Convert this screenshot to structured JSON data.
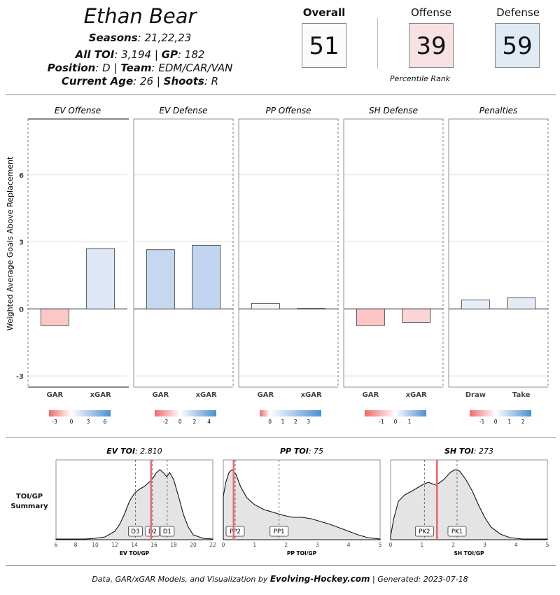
{
  "header": {
    "name": "Ethan Bear",
    "seasons_label": "Seasons",
    "seasons_value": ": 21,22,23",
    "toi_label": "All TOI",
    "toi_value": ": 3,194 | ",
    "gp_label": "GP",
    "gp_value": ": 182",
    "position_label": "Position",
    "position_value": ": D | ",
    "team_label": "Team",
    "team_value": ": EDM/CAR/VAN",
    "age_label": "Current Age",
    "age_value": ": 26 | ",
    "shoots_label": "Shoots",
    "shoots_value": ": R"
  },
  "scores": {
    "overall_label": "Overall",
    "overall_value": "51",
    "offense_label": "Offense",
    "offense_value": "39",
    "defense_label": "Defense",
    "defense_value": "59",
    "percentile_note": "Percentile Rank",
    "colors": {
      "overall": "#fbfbfb",
      "offense": "#f8e1e3",
      "defense": "#dfeaf5"
    }
  },
  "chart_data": [
    {
      "type": "bar",
      "title": "Weighted Average Goals Above Replacement",
      "ylabel": "Weighted Average Goals Above Replacement",
      "ylim": [
        -3.5,
        8.5
      ],
      "yticks": [
        -3,
        0,
        3,
        6
      ],
      "ytick_labels": [
        "-3",
        "0",
        "3",
        "6"
      ],
      "panels": [
        {
          "title": "EV Offense",
          "categories": [
            "GAR",
            "xGAR"
          ],
          "values": [
            -0.75,
            2.7
          ],
          "colors": [
            "#fbc8c8",
            "#dde7f5"
          ],
          "legend_ticks": [
            "-3",
            "0",
            "3",
            "6"
          ],
          "legend_range": [
            -4,
            7
          ]
        },
        {
          "title": "EV Defense",
          "categories": [
            "GAR",
            "xGAR"
          ],
          "values": [
            2.65,
            2.85
          ],
          "colors": [
            "#c5d8f0",
            "#c2d5f0"
          ],
          "legend_ticks": [
            "-2",
            "0",
            "2",
            "4"
          ],
          "legend_range": [
            -3.5,
            5
          ]
        },
        {
          "title": "PP Offense",
          "categories": [
            "GAR",
            "xGAR"
          ],
          "values": [
            0.25,
            0.02
          ],
          "colors": [
            "#f3f6fb",
            "#f7f7f7"
          ],
          "legend_ticks": [
            "0",
            "1",
            "2",
            "3"
          ],
          "legend_range": [
            -0.8,
            4
          ]
        },
        {
          "title": "SH Defense",
          "categories": [
            "GAR",
            "xGAR"
          ],
          "values": [
            -0.75,
            -0.6
          ],
          "colors": [
            "#fcc6c6",
            "#fcd4d4"
          ],
          "legend_ticks": [
            "-1",
            "0",
            "1"
          ],
          "legend_range": [
            -2.2,
            2.2
          ]
        },
        {
          "title": "Penalties",
          "categories": [
            "Draw",
            "Take"
          ],
          "values": [
            0.4,
            0.5
          ],
          "colors": [
            "#e8eef8",
            "#e3ebf7"
          ],
          "legend_ticks": [
            "-1",
            "0",
            "1",
            "2"
          ],
          "legend_range": [
            -1.9,
            2.6
          ]
        }
      ]
    },
    {
      "type": "area",
      "title": "EV TOI",
      "title_value": ": 2,810",
      "xlabel": "EV TOI/GP",
      "xlim": [
        6,
        22
      ],
      "xticks": [
        "6",
        "8",
        "10",
        "12",
        "14",
        "16",
        "18",
        "20",
        "22"
      ],
      "density": [
        [
          6,
          0.01
        ],
        [
          8,
          0.01
        ],
        [
          9,
          0.01
        ],
        [
          10,
          0.02
        ],
        [
          11,
          0.04
        ],
        [
          12,
          0.12
        ],
        [
          12.5,
          0.22
        ],
        [
          13,
          0.37
        ],
        [
          13.5,
          0.55
        ],
        [
          14,
          0.66
        ],
        [
          14.5,
          0.72
        ],
        [
          15,
          0.76
        ],
        [
          15.5,
          0.82
        ],
        [
          15.9,
          0.88
        ],
        [
          16.2,
          0.95
        ],
        [
          16.6,
          1.0
        ],
        [
          17,
          0.95
        ],
        [
          17.3,
          0.9
        ],
        [
          17.6,
          0.96
        ],
        [
          18,
          0.86
        ],
        [
          18.5,
          0.62
        ],
        [
          19,
          0.36
        ],
        [
          19.5,
          0.18
        ],
        [
          20,
          0.07
        ],
        [
          21,
          0.02
        ],
        [
          22,
          0.01
        ]
      ],
      "markers": [
        {
          "label": "D3",
          "x": 14.1
        },
        {
          "label": "D2",
          "x": 15.85
        },
        {
          "label": "D1",
          "x": 17.35
        }
      ],
      "player_value": 15.7
    },
    {
      "type": "area",
      "title": "PP TOI",
      "title_value": ": 75",
      "xlabel": "PP TOI/GP",
      "xlim": [
        0,
        5
      ],
      "xticks": [
        "0",
        "1",
        "2",
        "3",
        "4",
        "5"
      ],
      "density": [
        [
          0,
          0.62
        ],
        [
          0.08,
          0.82
        ],
        [
          0.18,
          0.96
        ],
        [
          0.28,
          1.0
        ],
        [
          0.4,
          0.94
        ],
        [
          0.55,
          0.76
        ],
        [
          0.75,
          0.6
        ],
        [
          1,
          0.5
        ],
        [
          1.3,
          0.43
        ],
        [
          1.6,
          0.39
        ],
        [
          1.9,
          0.35
        ],
        [
          2.2,
          0.32
        ],
        [
          2.5,
          0.32
        ],
        [
          2.8,
          0.3
        ],
        [
          3.1,
          0.26
        ],
        [
          3.4,
          0.22
        ],
        [
          3.7,
          0.17
        ],
        [
          4,
          0.12
        ],
        [
          4.3,
          0.07
        ],
        [
          4.6,
          0.03
        ],
        [
          5,
          0.01
        ]
      ],
      "markers": [
        {
          "label": "PP2",
          "x": 0.38
        },
        {
          "label": "PP1",
          "x": 1.78
        }
      ],
      "player_value": 0.33
    },
    {
      "type": "area",
      "title": "SH TOI",
      "title_value": ": 273",
      "xlabel": "SH TOI/GP",
      "xlim": [
        0,
        5
      ],
      "xticks": [
        "0",
        "1",
        "2",
        "3",
        "4",
        "5"
      ],
      "density": [
        [
          0,
          0.05
        ],
        [
          0.1,
          0.3
        ],
        [
          0.25,
          0.55
        ],
        [
          0.45,
          0.64
        ],
        [
          0.7,
          0.7
        ],
        [
          1,
          0.78
        ],
        [
          1.2,
          0.82
        ],
        [
          1.45,
          0.78
        ],
        [
          1.7,
          0.86
        ],
        [
          1.9,
          0.96
        ],
        [
          2.05,
          1.0
        ],
        [
          2.2,
          0.98
        ],
        [
          2.4,
          0.86
        ],
        [
          2.6,
          0.7
        ],
        [
          2.8,
          0.5
        ],
        [
          3,
          0.32
        ],
        [
          3.2,
          0.18
        ],
        [
          3.5,
          0.08
        ],
        [
          3.8,
          0.03
        ],
        [
          4.2,
          0.01
        ],
        [
          5,
          0.01
        ]
      ],
      "markers": [
        {
          "label": "PK2",
          "x": 1.08
        },
        {
          "label": "PK1",
          "x": 2.12
        }
      ],
      "player_value": 1.48
    }
  ],
  "toi_summary_label": "TOI/GP Summary",
  "footer": {
    "prefix": "Data, GAR/xGAR Models, and Visualization by ",
    "brand": "Evolving-Hockey.com",
    "suffix": " | Generated: 2023-07-18"
  }
}
